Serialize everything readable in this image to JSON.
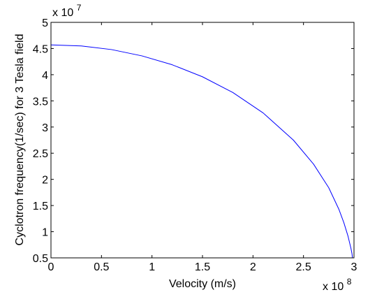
{
  "chart_data": {
    "type": "line",
    "title": "",
    "xlabel": "Velocity (m/s)",
    "ylabel": "Cyclotron frequency(1/sec) for 3 Tesla field",
    "x_exponent": {
      "base": "x 10",
      "power": "8"
    },
    "y_exponent": {
      "base": "x 10",
      "power": "7"
    },
    "xlim": [
      0,
      300000000
    ],
    "ylim": [
      5000000,
      50000000
    ],
    "xticks": [
      0,
      50000000,
      100000000,
      150000000,
      200000000,
      250000000,
      300000000
    ],
    "xtick_labels": [
      "0",
      "0.5",
      "1",
      "1.5",
      "2",
      "2.5",
      "3"
    ],
    "yticks": [
      5000000,
      10000000,
      15000000,
      20000000,
      25000000,
      30000000,
      35000000,
      40000000,
      45000000,
      50000000
    ],
    "ytick_labels": [
      "0.5",
      "1",
      "1.5",
      "2",
      "2.5",
      "3",
      "3.5",
      "4",
      "4.5",
      "5"
    ],
    "grid": false,
    "series": [
      {
        "color": "#0000ff",
        "x": [
          0,
          30000000,
          60000000,
          90000000,
          120000000,
          150000000,
          180000000,
          210000000,
          240000000,
          260000000,
          275000000,
          285000000,
          290000000,
          294000000,
          297000000,
          298000000,
          299000000
        ],
        "values": [
          45700000,
          45500000,
          44800000,
          43600000,
          41900000,
          39600000,
          36600000,
          32700000,
          27500000,
          22900000,
          18400000,
          14300000,
          11700000,
          9200000,
          6800000,
          5800000,
          4100000
        ]
      }
    ]
  }
}
